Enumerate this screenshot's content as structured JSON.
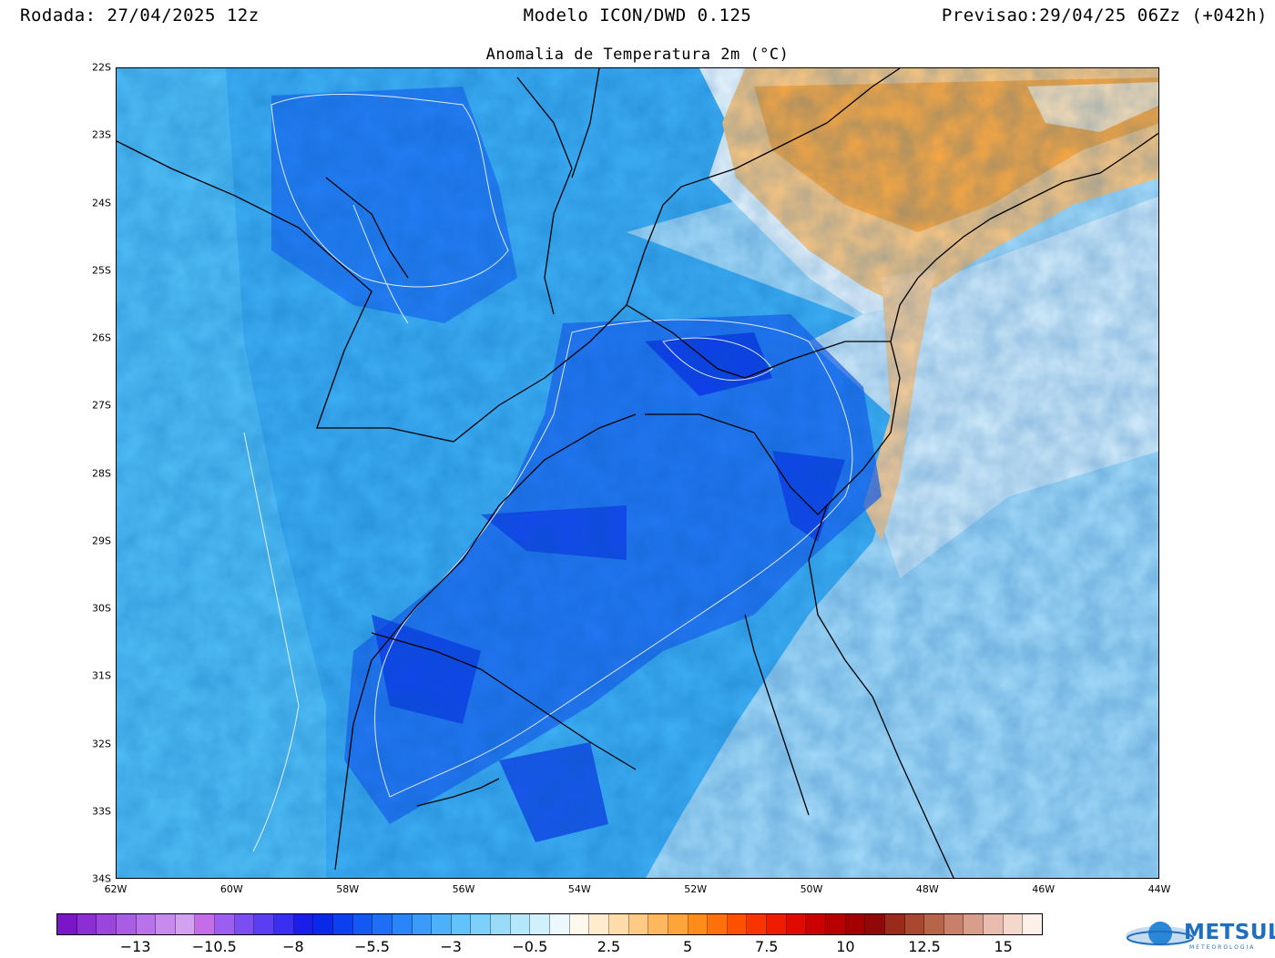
{
  "header": {
    "run": "Rodada: 27/04/2025 12z",
    "model": "Modelo ICON/DWD 0.125",
    "forecast": "Previsao:29/04/25 06Zz (+042h)"
  },
  "map": {
    "title": "Anomalia de Temperatura 2m (°C)",
    "lat_labels": [
      "22S",
      "23S",
      "24S",
      "25S",
      "26S",
      "27S",
      "28S",
      "29S",
      "30S",
      "31S",
      "32S",
      "33S",
      "34S"
    ],
    "lon_labels": [
      "62W",
      "60W",
      "58W",
      "56W",
      "54W",
      "52W",
      "50W",
      "48W",
      "46W",
      "44W"
    ]
  },
  "colorbar": {
    "labels": [
      "−13",
      "−10.5",
      "−8",
      "−5.5",
      "−3",
      "−0.5",
      "2.5",
      "5",
      "7.5",
      "10",
      "12.5",
      "15"
    ],
    "colors": [
      "#7a16c8",
      "#8b2fd4",
      "#9a45dc",
      "#a95ce4",
      "#b873ea",
      "#c88aee",
      "#d4a0f0",
      "#c56de8",
      "#9c5ef0",
      "#7b4ef2",
      "#5a3ef4",
      "#3a2ef0",
      "#1a1ee8",
      "#0a28e8",
      "#0a40f0",
      "#1458f4",
      "#1e6ef6",
      "#2a86f8",
      "#3a9cf8",
      "#4cb0fa",
      "#62c2fa",
      "#7cd0fa",
      "#98dcfa",
      "#b4e6fc",
      "#d0f0fc",
      "#ecf8fe",
      "#fff8ec",
      "#ffeccc",
      "#ffdcaa",
      "#ffca84",
      "#ffb85e",
      "#ffa43a",
      "#ff8c1a",
      "#ff700a",
      "#ff5000",
      "#f83400",
      "#ee1c00",
      "#e00a00",
      "#cc0000",
      "#b80000",
      "#a40000",
      "#900808",
      "#9a2a1a",
      "#a8482e",
      "#b86448",
      "#c8806a",
      "#d89e8c",
      "#e8bcae",
      "#f4d8cc",
      "#fcf0e8"
    ],
    "logo": "METSUL",
    "logo_sub": "METEOROLOGIA"
  }
}
